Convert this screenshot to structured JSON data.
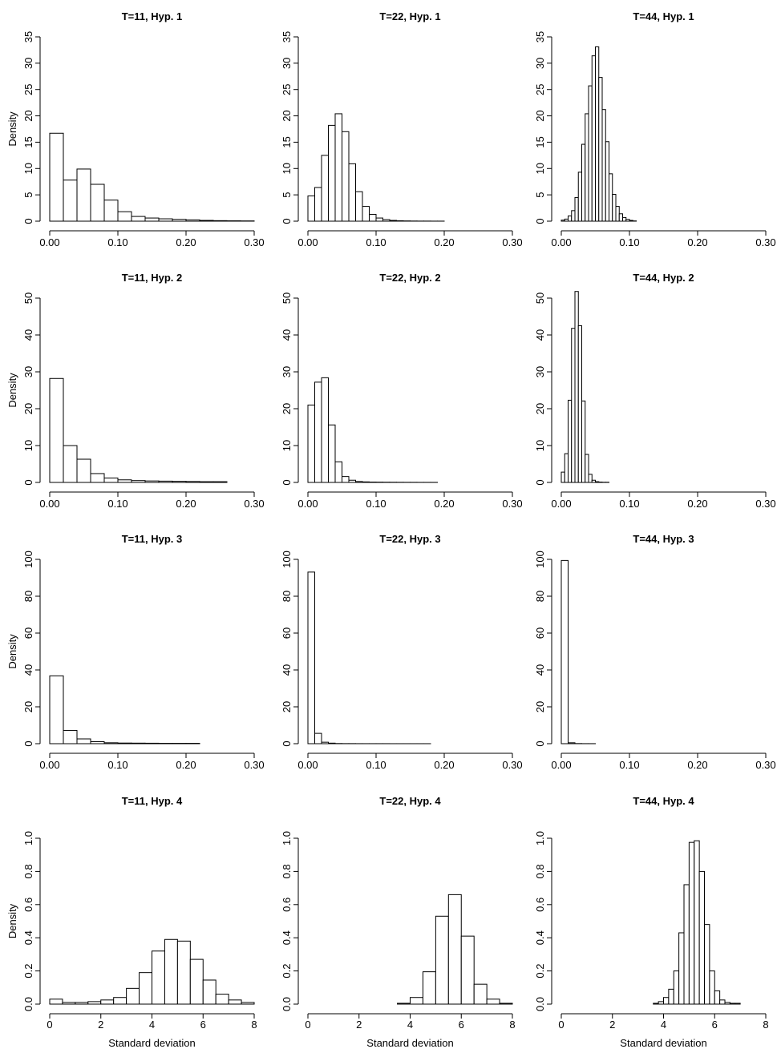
{
  "colors": {
    "bar_fill": "#ffffff",
    "bar_stroke": "#000000",
    "axis": "#000000",
    "background": "#ffffff"
  },
  "chart_data": [
    {
      "type": "bar",
      "title": "T=11, Hyp. 1",
      "ylabel": "Density",
      "xlabel": "",
      "xlim": [
        0,
        0.3
      ],
      "ylim": [
        0,
        35
      ],
      "xticks": [
        0,
        0.1,
        0.2,
        0.3
      ],
      "xtick_labels": [
        "0.00",
        "0.10",
        "0.20",
        "0.30"
      ],
      "yticks": [
        0,
        5,
        10,
        15,
        20,
        25,
        30,
        35
      ],
      "ytick_labels": [
        "0",
        "5",
        "10",
        "15",
        "20",
        "25",
        "30",
        "35"
      ],
      "bin_start": 0,
      "bin_width": 0.02,
      "values": [
        16.7,
        7.8,
        9.9,
        7.0,
        4.0,
        1.8,
        0.9,
        0.6,
        0.45,
        0.35,
        0.25,
        0.15,
        0.1,
        0.07,
        0.05
      ]
    },
    {
      "type": "bar",
      "title": "T=22, Hyp. 1",
      "ylabel": "",
      "xlabel": "",
      "xlim": [
        0,
        0.3
      ],
      "ylim": [
        0,
        35
      ],
      "xticks": [
        0,
        0.1,
        0.2,
        0.3
      ],
      "xtick_labels": [
        "0.00",
        "0.10",
        "0.20",
        "0.30"
      ],
      "yticks": [
        0,
        5,
        10,
        15,
        20,
        25,
        30,
        35
      ],
      "ytick_labels": [
        "0",
        "5",
        "10",
        "15",
        "20",
        "25",
        "30",
        "35"
      ],
      "bin_start": 0,
      "bin_width": 0.01,
      "values": [
        4.8,
        6.4,
        12.5,
        18.2,
        20.4,
        17.0,
        10.9,
        5.6,
        2.8,
        1.3,
        0.6,
        0.3,
        0.15,
        0.08,
        0.05,
        0.03,
        0.02,
        0.02,
        0.01,
        0.01
      ]
    },
    {
      "type": "bar",
      "title": "T=44, Hyp. 1",
      "ylabel": "",
      "xlabel": "",
      "xlim": [
        0,
        0.3
      ],
      "ylim": [
        0,
        35
      ],
      "xticks": [
        0,
        0.1,
        0.2,
        0.3
      ],
      "xtick_labels": [
        "0.00",
        "0.10",
        "0.20",
        "0.30"
      ],
      "yticks": [
        0,
        5,
        10,
        15,
        20,
        25,
        30,
        35
      ],
      "ytick_labels": [
        "0",
        "5",
        "10",
        "15",
        "20",
        "25",
        "30",
        "35"
      ],
      "bin_start": 0,
      "bin_width": 0.005,
      "values": [
        0.2,
        0.4,
        1.0,
        2.0,
        4.5,
        9.3,
        14.6,
        20.4,
        25.7,
        31.4,
        33.1,
        27.3,
        21.2,
        15.1,
        9.0,
        5.1,
        2.8,
        1.4,
        0.7,
        0.35,
        0.15,
        0.05
      ]
    },
    {
      "type": "bar",
      "title": "T=11, Hyp. 2",
      "ylabel": "Density",
      "xlabel": "",
      "xlim": [
        0,
        0.3
      ],
      "ylim": [
        0,
        50
      ],
      "xticks": [
        0,
        0.1,
        0.2,
        0.3
      ],
      "xtick_labels": [
        "0.00",
        "0.10",
        "0.20",
        "0.30"
      ],
      "yticks": [
        0,
        10,
        20,
        30,
        40,
        50
      ],
      "ytick_labels": [
        "0",
        "10",
        "20",
        "30",
        "40",
        "50"
      ],
      "bin_start": 0,
      "bin_width": 0.02,
      "values": [
        28.2,
        10.0,
        6.3,
        2.4,
        1.2,
        0.7,
        0.5,
        0.4,
        0.35,
        0.3,
        0.25,
        0.2,
        0.2
      ]
    },
    {
      "type": "bar",
      "title": "T=22, Hyp. 2",
      "ylabel": "",
      "xlabel": "",
      "xlim": [
        0,
        0.3
      ],
      "ylim": [
        0,
        50
      ],
      "xticks": [
        0,
        0.1,
        0.2,
        0.3
      ],
      "xtick_labels": [
        "0.00",
        "0.10",
        "0.20",
        "0.30"
      ],
      "yticks": [
        0,
        10,
        20,
        30,
        40,
        50
      ],
      "ytick_labels": [
        "0",
        "10",
        "20",
        "30",
        "40",
        "50"
      ],
      "bin_start": 0,
      "bin_width": 0.01,
      "values": [
        21.0,
        27.2,
        28.4,
        15.6,
        5.6,
        1.6,
        0.6,
        0.25,
        0.15,
        0.1,
        0.08,
        0.06,
        0.05,
        0.04,
        0.03,
        0.03,
        0.02,
        0.02,
        0.02
      ]
    },
    {
      "type": "bar",
      "title": "T=44, Hyp. 2",
      "ylabel": "",
      "xlabel": "",
      "xlim": [
        0,
        0.3
      ],
      "ylim": [
        0,
        50
      ],
      "xticks": [
        0,
        0.1,
        0.2,
        0.3
      ],
      "xtick_labels": [
        "0.00",
        "0.10",
        "0.20",
        "0.30"
      ],
      "yticks": [
        0,
        10,
        20,
        30,
        40,
        50
      ],
      "ytick_labels": [
        "0",
        "10",
        "20",
        "30",
        "40",
        "50"
      ],
      "bin_start": 0,
      "bin_width": 0.005,
      "values": [
        2.8,
        7.8,
        22.3,
        41.8,
        51.8,
        42.5,
        22.1,
        7.6,
        2.2,
        0.6,
        0.2,
        0.1,
        0.05,
        0.05
      ]
    },
    {
      "type": "bar",
      "title": "T=11, Hyp. 3",
      "ylabel": "Density",
      "xlabel": "",
      "xlim": [
        0,
        0.3
      ],
      "ylim": [
        0,
        100
      ],
      "xticks": [
        0,
        0.1,
        0.2,
        0.3
      ],
      "xtick_labels": [
        "0.00",
        "0.10",
        "0.20",
        "0.30"
      ],
      "yticks": [
        0,
        20,
        40,
        60,
        80,
        100
      ],
      "ytick_labels": [
        "0",
        "20",
        "40",
        "60",
        "80",
        "100"
      ],
      "bin_start": 0,
      "bin_width": 0.02,
      "values": [
        36.8,
        7.2,
        2.6,
        1.1,
        0.5,
        0.35,
        0.3,
        0.25,
        0.2,
        0.2,
        0.2
      ]
    },
    {
      "type": "bar",
      "title": "T=22, Hyp. 3",
      "ylabel": "",
      "xlabel": "",
      "xlim": [
        0,
        0.3
      ],
      "ylim": [
        0,
        100
      ],
      "xticks": [
        0,
        0.1,
        0.2,
        0.3
      ],
      "xtick_labels": [
        "0.00",
        "0.10",
        "0.20",
        "0.30"
      ],
      "yticks": [
        0,
        20,
        40,
        60,
        80,
        100
      ],
      "ytick_labels": [
        "0",
        "20",
        "40",
        "60",
        "80",
        "100"
      ],
      "bin_start": 0,
      "bin_width": 0.01,
      "values": [
        93.1,
        5.6,
        0.8,
        0.3,
        0.1,
        0.05,
        0.05,
        0.03,
        0.02,
        0.02,
        0.02,
        0.02,
        0.01,
        0.01,
        0.01,
        0.01,
        0.01,
        0.01
      ]
    },
    {
      "type": "bar",
      "title": "T=44, Hyp. 3",
      "ylabel": "",
      "xlabel": "",
      "xlim": [
        0,
        0.3
      ],
      "ylim": [
        0,
        100
      ],
      "xticks": [
        0,
        0.1,
        0.2,
        0.3
      ],
      "xtick_labels": [
        "0.00",
        "0.10",
        "0.20",
        "0.30"
      ],
      "yticks": [
        0,
        20,
        40,
        60,
        80,
        100
      ],
      "ytick_labels": [
        "0",
        "20",
        "40",
        "60",
        "80",
        "100"
      ],
      "bin_start": 0,
      "bin_width": 0.01,
      "values": [
        99.4,
        0.5,
        0.08,
        0.03,
        0.02
      ]
    },
    {
      "type": "bar",
      "title": "T=11, Hyp. 4",
      "ylabel": "Density",
      "xlabel": "Standard deviation",
      "xlim": [
        0,
        8
      ],
      "ylim": [
        0,
        1
      ],
      "xticks": [
        0,
        2,
        4,
        6,
        8
      ],
      "xtick_labels": [
        "0",
        "2",
        "4",
        "6",
        "8"
      ],
      "yticks": [
        0,
        0.2,
        0.4,
        0.6,
        0.8,
        1.0
      ],
      "ytick_labels": [
        "0.0",
        "0.2",
        "0.4",
        "0.6",
        "0.8",
        "1.0"
      ],
      "bin_start": 0,
      "bin_width": 0.5,
      "values": [
        0.03,
        0.01,
        0.01,
        0.015,
        0.025,
        0.04,
        0.095,
        0.19,
        0.32,
        0.39,
        0.38,
        0.27,
        0.145,
        0.06,
        0.025,
        0.01
      ]
    },
    {
      "type": "bar",
      "title": "T=22, Hyp. 4",
      "ylabel": "",
      "xlabel": "Standard deviation",
      "xlim": [
        0,
        8
      ],
      "ylim": [
        0,
        1
      ],
      "xticks": [
        0,
        2,
        4,
        6,
        8
      ],
      "xtick_labels": [
        "0",
        "2",
        "4",
        "6",
        "8"
      ],
      "yticks": [
        0,
        0.2,
        0.4,
        0.6,
        0.8,
        1.0
      ],
      "ytick_labels": [
        "0.0",
        "0.2",
        "0.4",
        "0.6",
        "0.8",
        "1.0"
      ],
      "bin_start": 0,
      "bin_width": 0.5,
      "values": [
        0,
        0,
        0,
        0,
        0,
        0,
        0,
        0.005,
        0.04,
        0.195,
        0.53,
        0.66,
        0.41,
        0.12,
        0.03,
        0.005
      ]
    },
    {
      "type": "bar",
      "title": "T=44, Hyp. 4",
      "ylabel": "",
      "xlabel": "Standard deviation",
      "xlim": [
        0,
        8
      ],
      "ylim": [
        0,
        1
      ],
      "xticks": [
        0,
        2,
        4,
        6,
        8
      ],
      "xtick_labels": [
        "0",
        "2",
        "4",
        "6",
        "8"
      ],
      "yticks": [
        0,
        0.2,
        0.4,
        0.6,
        0.8,
        1.0
      ],
      "ytick_labels": [
        "0.0",
        "0.2",
        "0.4",
        "0.6",
        "0.8",
        "1.0"
      ],
      "bin_start": 3.6,
      "bin_width": 0.2,
      "values": [
        0.005,
        0.015,
        0.04,
        0.09,
        0.2,
        0.43,
        0.72,
        0.975,
        0.985,
        0.8,
        0.48,
        0.2,
        0.08,
        0.025,
        0.01,
        0.005,
        0.005
      ]
    }
  ]
}
